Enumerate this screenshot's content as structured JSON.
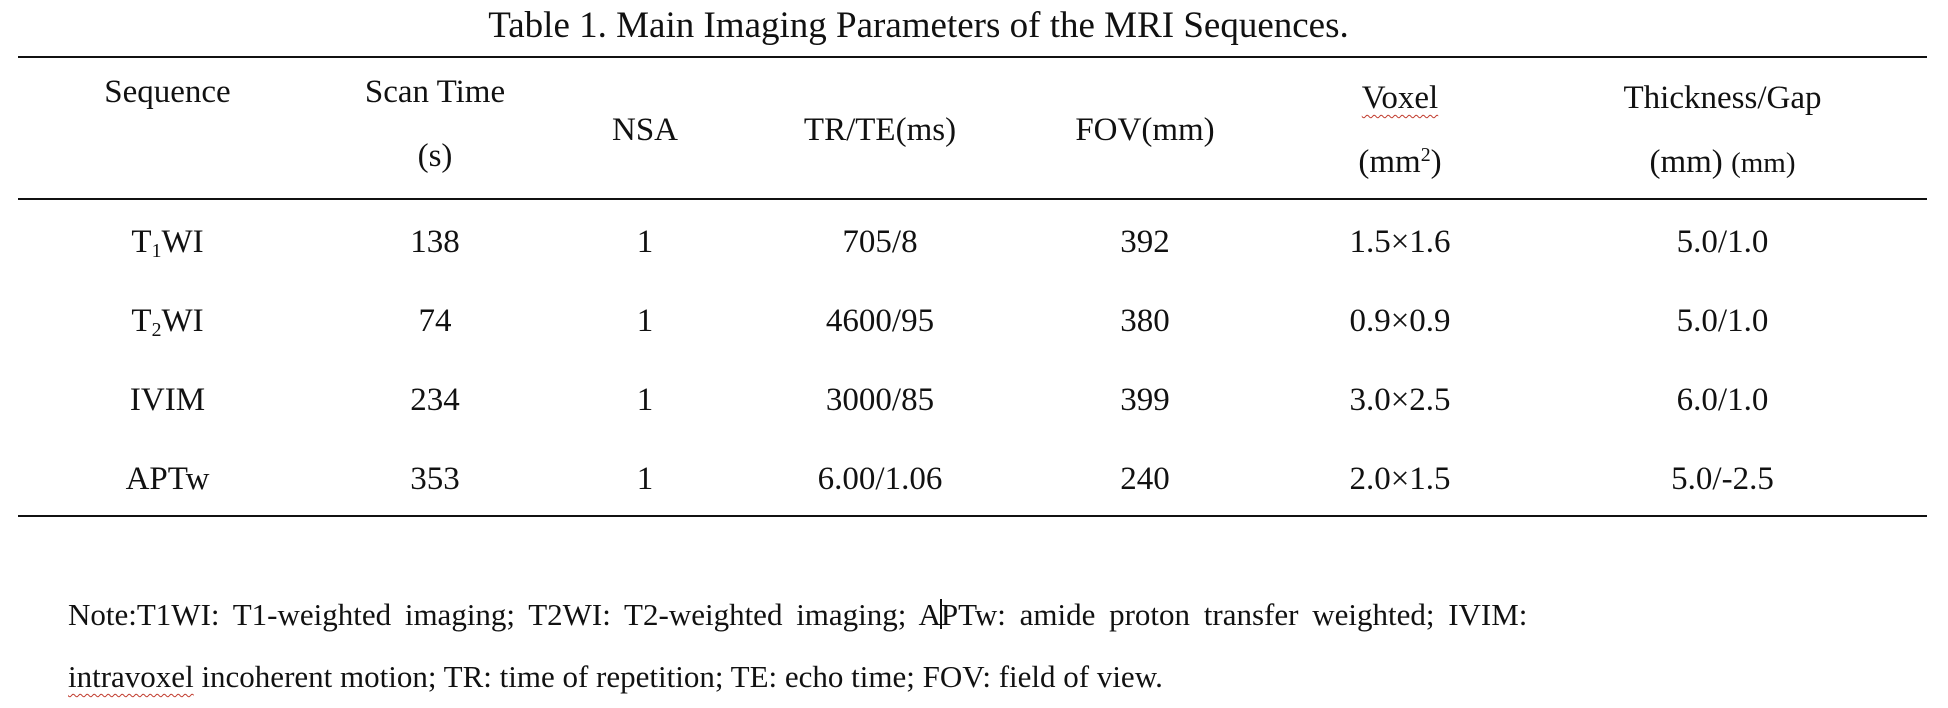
{
  "title": "Table 1. Main Imaging Parameters of the MRI Sequences.",
  "header": {
    "sequence": "Sequence",
    "scan_time_line1": "Scan Time",
    "scan_time_line2": "(s)",
    "nsa": "NSA",
    "tr_te": "TR/TE(ms)",
    "fov": "FOV(mm)",
    "voxel_line1": "Voxel",
    "voxel_line2_base": "(mm",
    "voxel_line2_sup": "2",
    "voxel_line2_close": ")",
    "thickness_line1": "Thickness/Gap",
    "thickness_line2a": "(mm)",
    "thickness_line2b": "(mm)"
  },
  "rows": [
    {
      "seq_prefix": "T",
      "seq_sub": "1",
      "seq_suffix": "WI",
      "scan_time": "138",
      "nsa": "1",
      "tr_te": "705/8",
      "fov": "392",
      "voxel": "1.5×1.6",
      "thickness_gap": "5.0/1.0"
    },
    {
      "seq_prefix": "T",
      "seq_sub": "2",
      "seq_suffix": "WI",
      "scan_time": "74",
      "nsa": "1",
      "tr_te": "4600/95",
      "fov": "380",
      "voxel": "0.9×0.9",
      "thickness_gap": "5.0/1.0"
    },
    {
      "seq_prefix": "IVIM",
      "seq_sub": "",
      "seq_suffix": "",
      "scan_time": "234",
      "nsa": "1",
      "tr_te": "3000/85",
      "fov": "399",
      "voxel": "3.0×2.5",
      "thickness_gap": "6.0/1.0"
    },
    {
      "seq_prefix": "APTw",
      "seq_sub": "",
      "seq_suffix": "",
      "scan_time": "353",
      "nsa": "1",
      "tr_te": "6.00/1.06",
      "fov": "240",
      "voxel": "2.0×1.5",
      "thickness_gap": "5.0/-2.5"
    }
  ],
  "note": {
    "line1_a": "Note:T1WI: T1-weighted imaging; T2WI: T2-weighted imaging; A",
    "line1_b": "PTw: amide proton transfer weighted; IVIM:",
    "line2_a": "intravoxel",
    "line2_b": " incoherent motion; TR: time of repetition; TE: echo time; FOV: field of view."
  },
  "colors": {
    "text": "#111111",
    "rule": "#111111",
    "spellcheck_underline": "#c0392b",
    "background": "#ffffff"
  }
}
